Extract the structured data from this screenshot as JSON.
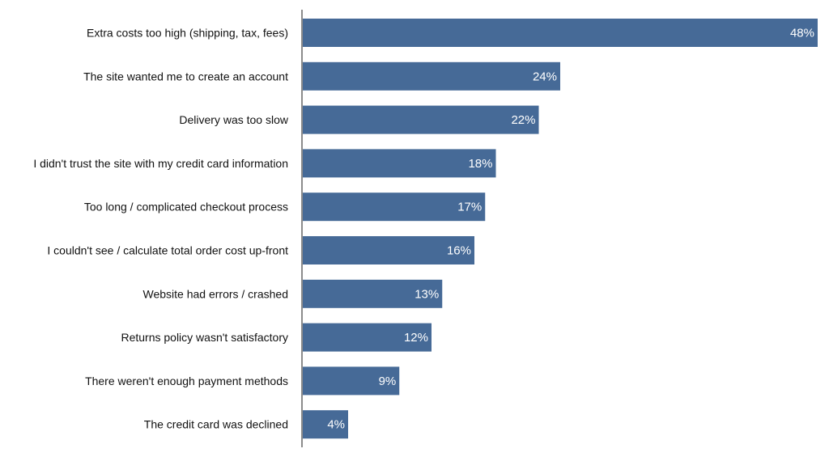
{
  "chart_data": {
    "type": "bar",
    "orientation": "horizontal",
    "categories": [
      "Extra costs too high (shipping, tax, fees)",
      "The site wanted me to create an account",
      "Delivery was too slow",
      "I didn't trust the site with my credit card information",
      "Too long / complicated checkout process",
      "I couldn't see / calculate total order cost up-front",
      "Website had errors / crashed",
      "Returns policy wasn't satisfactory",
      "There weren't enough payment methods",
      "The credit card was declined"
    ],
    "values": [
      48,
      24,
      22,
      18,
      17,
      16,
      13,
      12,
      9,
      4
    ],
    "data_labels": [
      "48%",
      "24%",
      "22%",
      "18%",
      "17%",
      "16%",
      "13%",
      "12%",
      "9%",
      "4%"
    ],
    "unit": "%",
    "xlim": [
      0,
      48
    ],
    "grid": false,
    "legend": "none",
    "colors": {
      "bar": "#466a97",
      "axis": "#666666",
      "label": "#111111",
      "data_label": "#ffffff"
    }
  }
}
